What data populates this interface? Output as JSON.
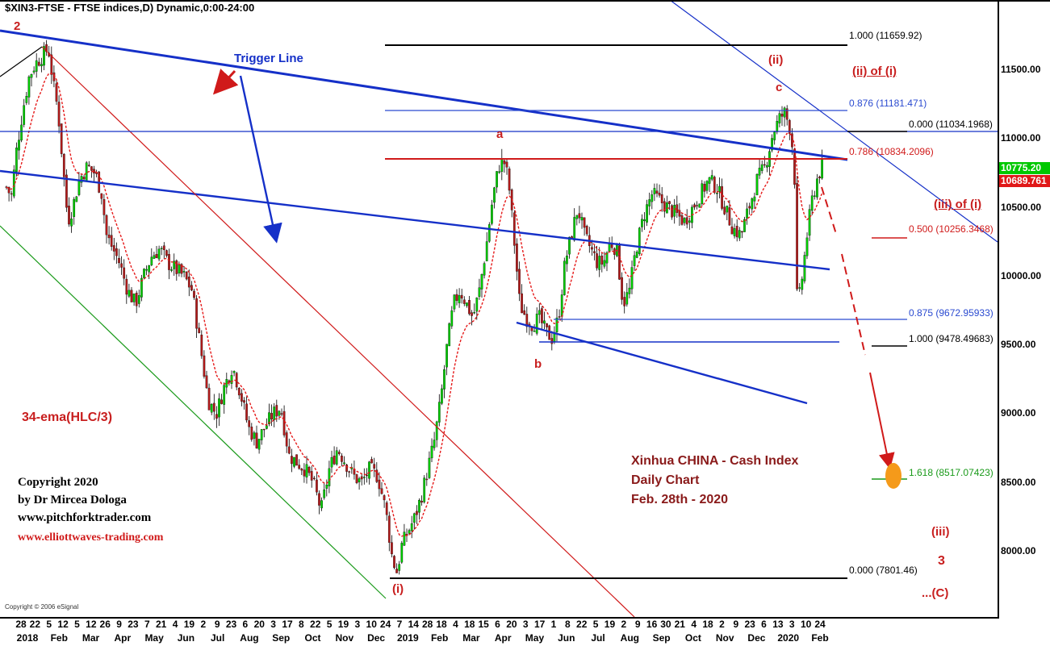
{
  "header": {
    "title": "$XIN3-FTSE - FTSE indices,D) Dynamic,0:00-24:00"
  },
  "colors": {
    "candle_up": "#00cc00",
    "candle_down": "#b31a1a",
    "ema": "#e51a1a",
    "fork_blue": "#1530c8",
    "fork_red": "#d01a1a",
    "fork_green": "#1a9a1a",
    "fib_blue": "#2a4ad0",
    "label_red": "#c81e1e",
    "badge_green": "#00c800",
    "badge_red": "#e01818",
    "target_orange": "#f59a1a"
  },
  "annotations": {
    "trigger_line": "Trigger Line",
    "ema_label": "34-ema(HLC/3)",
    "wave_2": "2",
    "wave_a": "a",
    "wave_b": "b",
    "wave_c": "c",
    "wave_ii": "(ii)",
    "wave_i": "(i)",
    "wave_iii": "(iii)",
    "wave_3": "3",
    "wave_C": "...(C)",
    "ii_of_i": "(ii) of (i)",
    "iii_of_i": "(iii) of (i)",
    "chart_title1": "Xinhua CHINA - Cash Index",
    "chart_title2": "Daily Chart",
    "chart_title3": "Feb. 28th - 2020",
    "copyright1": "Copyright 2020",
    "copyright2": "by Dr Mircea Dologa",
    "copyright3": "www.pitchforktrader.com",
    "copyright4": "www.elliottwaves-trading.com",
    "esignal": "Copyright © 2006 eSignal"
  },
  "fib_levels": [
    {
      "label": "1.000 (11659.92)",
      "value": 11659.92
    },
    {
      "label": "0.876 (11181.471)",
      "value": 11181.471
    },
    {
      "label": "0.000 (11034.1968)",
      "value": 11034.1968
    },
    {
      "label": "0.786 (10834.2096)",
      "value": 10834.2096
    },
    {
      "label": "0.500 (10256.3468)",
      "value": 10256.3468
    },
    {
      "label": "0.875 (9672.95933)",
      "value": 9672.95933
    },
    {
      "label": "1.000 (9478.49683)",
      "value": 9478.49683
    },
    {
      "label": "1.618 (8517.07423)",
      "value": 8517.07423
    },
    {
      "label": "0.000 (7801.46)",
      "value": 7801.46
    }
  ],
  "price_badges": [
    {
      "label": "10775.20",
      "value": 10775.2
    },
    {
      "label": "10689.761",
      "value": 10689.761
    }
  ],
  "chart_data": {
    "type": "candlestick",
    "title": "Xinhua CHINA - Cash Index",
    "subtitle": "Daily Chart",
    "ylim": [
      7600,
      11900
    ],
    "yticks": [
      {
        "label": "11500.00",
        "value": 11500
      },
      {
        "label": "11000.00",
        "value": 11000
      },
      {
        "label": "10500.00",
        "value": 10500
      },
      {
        "label": "10000.00",
        "value": 10000
      },
      {
        "label": "9500.00",
        "value": 9500
      },
      {
        "label": "9000.00",
        "value": 9000
      },
      {
        "label": "8500.00",
        "value": 8500
      },
      {
        "label": "8000.00",
        "value": 8000
      }
    ],
    "xticks_days": [
      "28",
      "22",
      "5",
      "12",
      "5",
      "12",
      "26",
      "9",
      "23",
      "7",
      "21",
      "4",
      "19",
      "2",
      "9",
      "23",
      "6",
      "20",
      "3",
      "17",
      "8",
      "22",
      "5",
      "19",
      "3",
      "10",
      "24",
      "7",
      "14",
      "28",
      "18",
      "4",
      "18",
      "15",
      "6",
      "20",
      "3",
      "17",
      "1",
      "8",
      "22",
      "5",
      "19",
      "2",
      "9",
      "16",
      "30",
      "21",
      "4",
      "18",
      "2",
      "9",
      "23",
      "6",
      "13",
      "3",
      "10",
      "24"
    ],
    "xticks_months": [
      "2018",
      "Feb",
      "Mar",
      "Apr",
      "May",
      "Jun",
      "Jul",
      "Aug",
      "Sep",
      "Oct",
      "Nov",
      "Dec",
      "2019",
      "Feb",
      "Mar",
      "Apr",
      "May",
      "Jun",
      "Jul",
      "Aug",
      "Sep",
      "Oct",
      "Nov",
      "Dec",
      "2020",
      "Feb"
    ],
    "close_path": [
      [
        0,
        10650
      ],
      [
        6,
        10580
      ],
      [
        12,
        10900
      ],
      [
        20,
        11200
      ],
      [
        28,
        11450
      ],
      [
        36,
        11550
      ],
      [
        44,
        11600
      ],
      [
        52,
        11660
      ],
      [
        58,
        11400
      ],
      [
        64,
        11200
      ],
      [
        70,
        10800
      ],
      [
        76,
        10400
      ],
      [
        82,
        10500
      ],
      [
        90,
        10700
      ],
      [
        100,
        10800
      ],
      [
        110,
        10750
      ],
      [
        118,
        10600
      ],
      [
        124,
        10300
      ],
      [
        132,
        10200
      ],
      [
        140,
        10100
      ],
      [
        150,
        9900
      ],
      [
        160,
        9800
      ],
      [
        170,
        10000
      ],
      [
        180,
        10150
      ],
      [
        190,
        10200
      ],
      [
        200,
        10100
      ],
      [
        210,
        10050
      ],
      [
        220,
        10000
      ],
      [
        230,
        9900
      ],
      [
        240,
        9500
      ],
      [
        250,
        9100
      ],
      [
        260,
        9000
      ],
      [
        270,
        9200
      ],
      [
        280,
        9350
      ],
      [
        290,
        9150
      ],
      [
        300,
        8900
      ],
      [
        310,
        8800
      ],
      [
        320,
        8900
      ],
      [
        330,
        9000
      ],
      [
        340,
        9050
      ],
      [
        350,
        8700
      ],
      [
        360,
        8650
      ],
      [
        370,
        8600
      ],
      [
        380,
        8500
      ],
      [
        390,
        8300
      ],
      [
        400,
        8600
      ],
      [
        410,
        8750
      ],
      [
        420,
        8650
      ],
      [
        430,
        8550
      ],
      [
        440,
        8500
      ],
      [
        450,
        8600
      ],
      [
        460,
        8550
      ],
      [
        470,
        8300
      ],
      [
        478,
        7950
      ],
      [
        484,
        7850
      ],
      [
        490,
        8050
      ],
      [
        498,
        8150
      ],
      [
        506,
        8250
      ],
      [
        514,
        8400
      ],
      [
        522,
        8600
      ],
      [
        530,
        8800
      ],
      [
        538,
        9100
      ],
      [
        546,
        9500
      ],
      [
        554,
        9800
      ],
      [
        562,
        9900
      ],
      [
        570,
        9800
      ],
      [
        578,
        9700
      ],
      [
        586,
        9900
      ],
      [
        594,
        10200
      ],
      [
        602,
        10550
      ],
      [
        610,
        10800
      ],
      [
        616,
        10850
      ],
      [
        622,
        10700
      ],
      [
        630,
        10200
      ],
      [
        636,
        9800
      ],
      [
        644,
        9700
      ],
      [
        652,
        9650
      ],
      [
        660,
        9700
      ],
      [
        668,
        9600
      ],
      [
        676,
        9550
      ],
      [
        684,
        9700
      ],
      [
        692,
        10100
      ],
      [
        700,
        10300
      ],
      [
        708,
        10500
      ],
      [
        716,
        10300
      ],
      [
        724,
        10200
      ],
      [
        732,
        10100
      ],
      [
        740,
        10100
      ],
      [
        748,
        10250
      ],
      [
        756,
        10200
      ],
      [
        764,
        9800
      ],
      [
        772,
        9900
      ],
      [
        780,
        10200
      ],
      [
        790,
        10450
      ],
      [
        800,
        10600
      ],
      [
        810,
        10550
      ],
      [
        820,
        10500
      ],
      [
        830,
        10450
      ],
      [
        840,
        10400
      ],
      [
        850,
        10500
      ],
      [
        860,
        10600
      ],
      [
        870,
        10700
      ],
      [
        880,
        10650
      ],
      [
        890,
        10500
      ],
      [
        900,
        10350
      ],
      [
        910,
        10300
      ],
      [
        920,
        10500
      ],
      [
        930,
        10700
      ],
      [
        940,
        10800
      ],
      [
        950,
        11050
      ],
      [
        958,
        11150
      ],
      [
        964,
        11190
      ],
      [
        970,
        11100
      ],
      [
        976,
        10850
      ],
      [
        980,
        9750
      ],
      [
        986,
        10000
      ],
      [
        992,
        10300
      ],
      [
        998,
        10550
      ],
      [
        1004,
        10700
      ],
      [
        1010,
        10800
      ],
      [
        1016,
        10780
      ],
      [
        1020,
        10690
      ]
    ],
    "series": [
      {
        "name": "34-ema(HLC/3)",
        "kind": "ema"
      }
    ]
  }
}
